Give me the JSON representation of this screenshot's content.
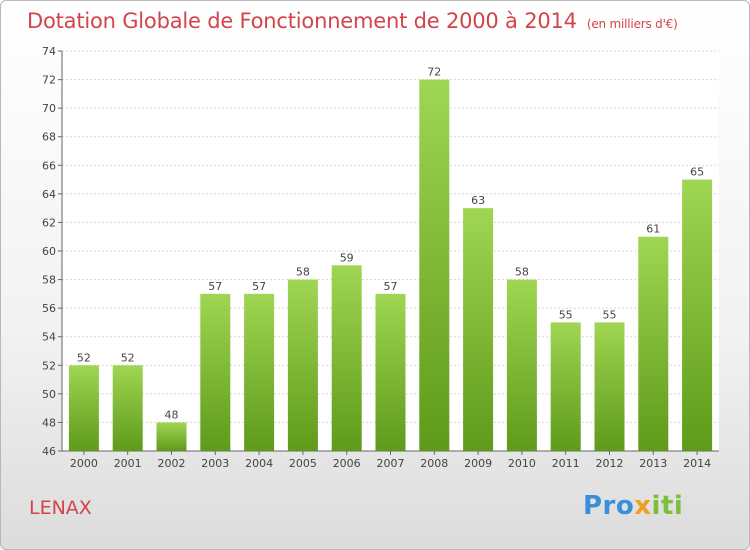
{
  "chart_data": {
    "type": "bar",
    "title": "Dotation Globale de Fonctionnement de 2000 à 2014",
    "subtitle": "(en milliers d'€)",
    "categories": [
      "2000",
      "2001",
      "2002",
      "2003",
      "2004",
      "2005",
      "2006",
      "2007",
      "2008",
      "2009",
      "2010",
      "2011",
      "2012",
      "2013",
      "2014"
    ],
    "values": [
      52,
      52,
      48,
      57,
      57,
      58,
      59,
      57,
      72,
      63,
      58,
      55,
      55,
      61,
      65
    ],
    "ylim": [
      46,
      74
    ],
    "yticks": [
      46,
      48,
      50,
      52,
      54,
      56,
      58,
      60,
      62,
      64,
      66,
      68,
      70,
      72,
      74
    ],
    "xlabel": "",
    "ylabel": "",
    "grid": true
  },
  "location": "LENAX",
  "logo": {
    "part1": "Pro",
    "part2": "x",
    "part3": "iti"
  },
  "colors": {
    "title": "#d2444a",
    "bar_light": "#9fd653",
    "bar_dark": "#5f9a1a"
  }
}
